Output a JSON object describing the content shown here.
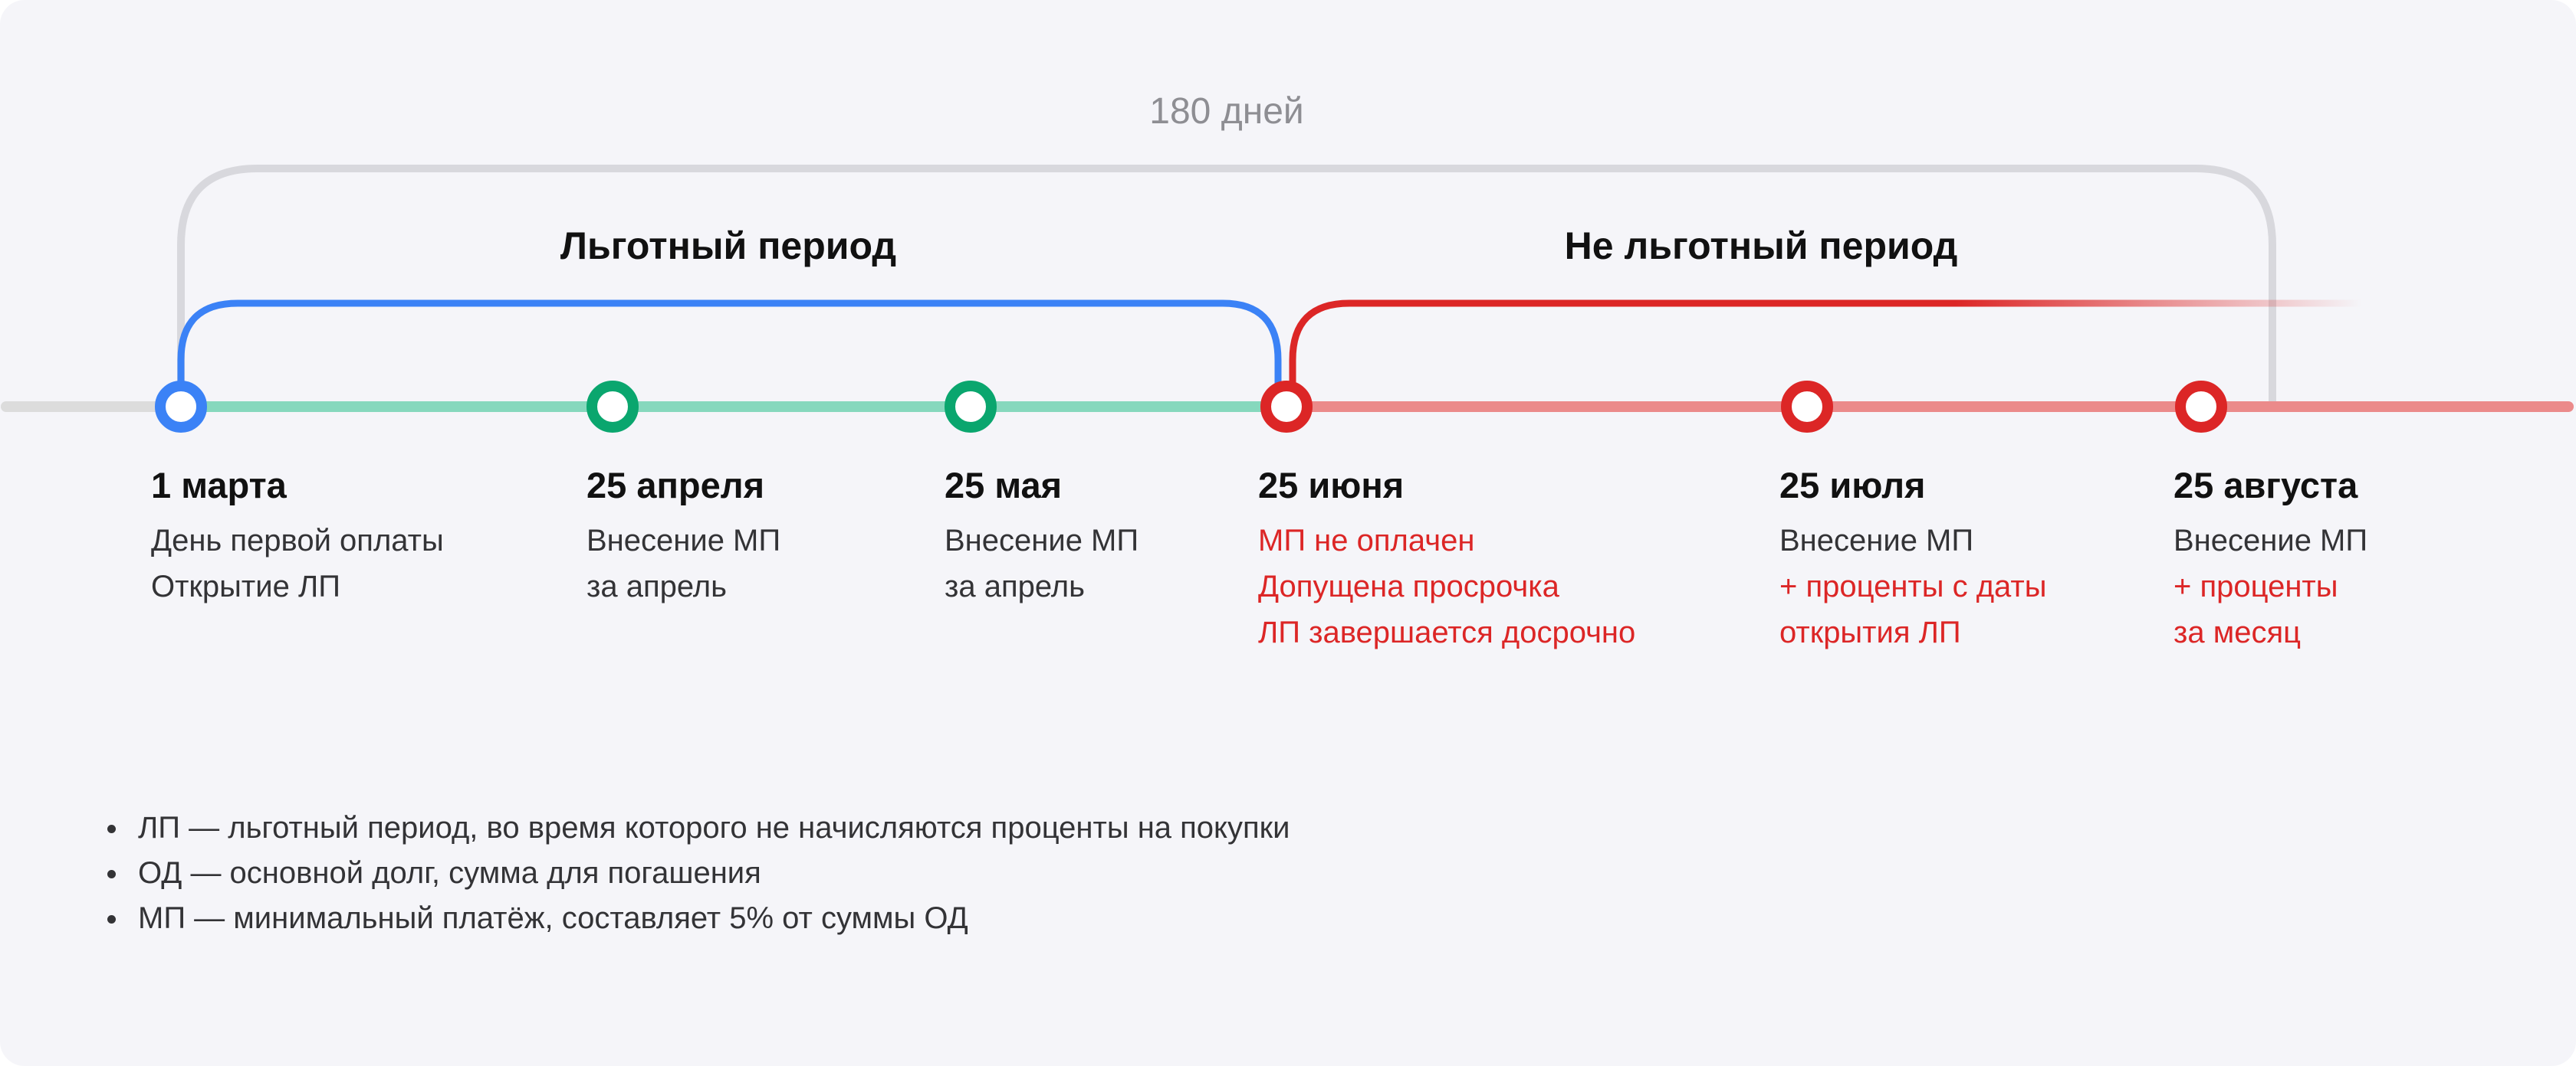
{
  "total_period": "180 дней",
  "grace_period_label": "Льготный период",
  "non_grace_period_label": "Не льготный период",
  "colors": {
    "background": "#f5f5f9",
    "grace": "#3b82f6",
    "paid": "#0aa66e",
    "overdue": "#dc2626",
    "grace_line": "#86d8bd",
    "overdue_line": "#eb8a8a",
    "neutral": "#d8d8dd"
  },
  "points": [
    {
      "date": "1 марта",
      "status": "start",
      "lines": [
        {
          "text": "День первой оплаты",
          "tone": "dark"
        },
        {
          "text": "Открытие ЛП",
          "tone": "dark"
        }
      ]
    },
    {
      "date": "25 апреля",
      "status": "paid",
      "lines": [
        {
          "text": "Внесение МП",
          "tone": "dark"
        },
        {
          "text": "за апрель",
          "tone": "dark"
        }
      ]
    },
    {
      "date": "25 мая",
      "status": "paid",
      "lines": [
        {
          "text": "Внесение МП",
          "tone": "dark"
        },
        {
          "text": "за апрель",
          "tone": "dark"
        }
      ]
    },
    {
      "date": "25 июня",
      "status": "overdue",
      "lines": [
        {
          "text": "МП не оплачен",
          "tone": "red"
        },
        {
          "text": "Допущена просрочка",
          "tone": "red"
        },
        {
          "text": "ЛП завершается досрочно",
          "tone": "red"
        }
      ]
    },
    {
      "date": "25 июля",
      "status": "overdue",
      "lines": [
        {
          "text": "Внесение МП",
          "tone": "dark"
        },
        {
          "text": "+ проценты с даты",
          "tone": "red"
        },
        {
          "text": "открытия ЛП",
          "tone": "red"
        }
      ]
    },
    {
      "date": "25 августа",
      "status": "overdue",
      "lines": [
        {
          "text": "Внесение МП",
          "tone": "dark"
        },
        {
          "text": "+ проценты",
          "tone": "red"
        },
        {
          "text": "за месяц",
          "tone": "red"
        }
      ]
    }
  ],
  "legend": [
    "ЛП — льготный период, во время которого не начисляются проценты на покупки",
    "ОД — основной долг, сумма для погашения",
    "МП — минимальный платёж, составляет 5% от суммы ОД"
  ]
}
